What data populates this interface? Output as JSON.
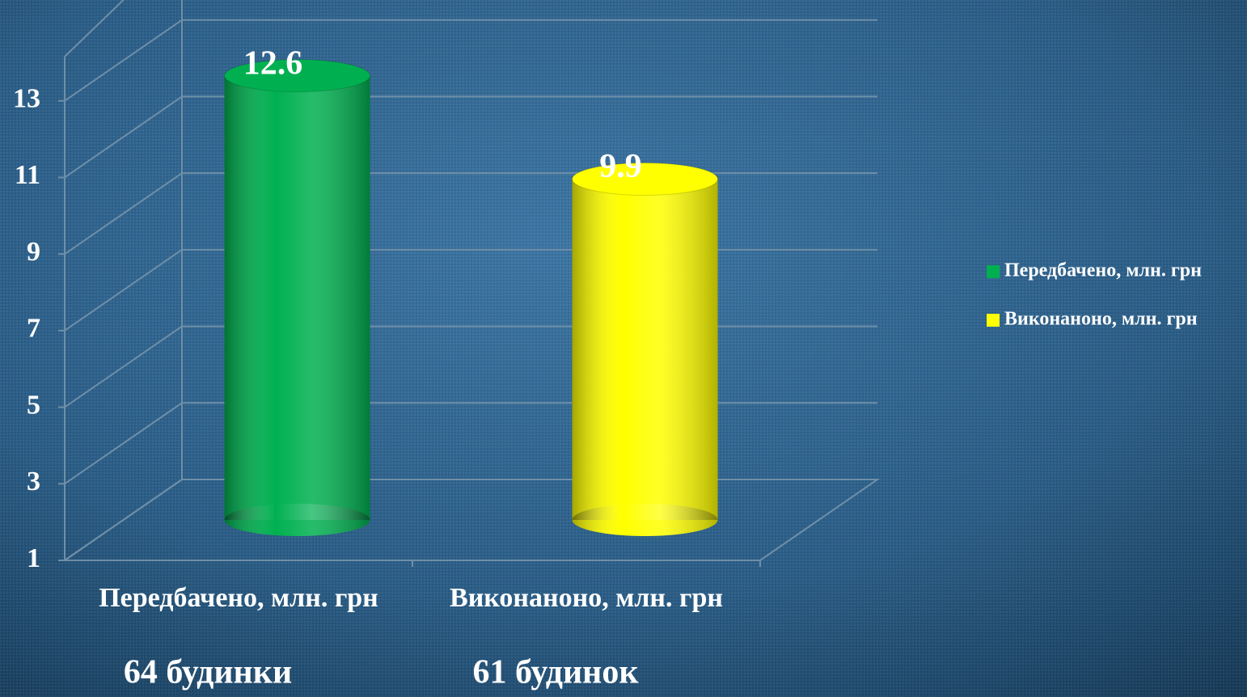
{
  "chart_data": {
    "type": "bar3d",
    "categories": [
      "Передбачено, млн. грн",
      "Виконаноно, млн. грн"
    ],
    "values": [
      12.6,
      9.9
    ],
    "colors": [
      "#00b050",
      "#ffff00"
    ],
    "annotations": [
      "64 будинки",
      "61 будинок"
    ],
    "ylim": [
      1,
      15
    ],
    "yticks": [
      1,
      3,
      5,
      7,
      9,
      11,
      13
    ],
    "grid": true,
    "legend": "right"
  }
}
